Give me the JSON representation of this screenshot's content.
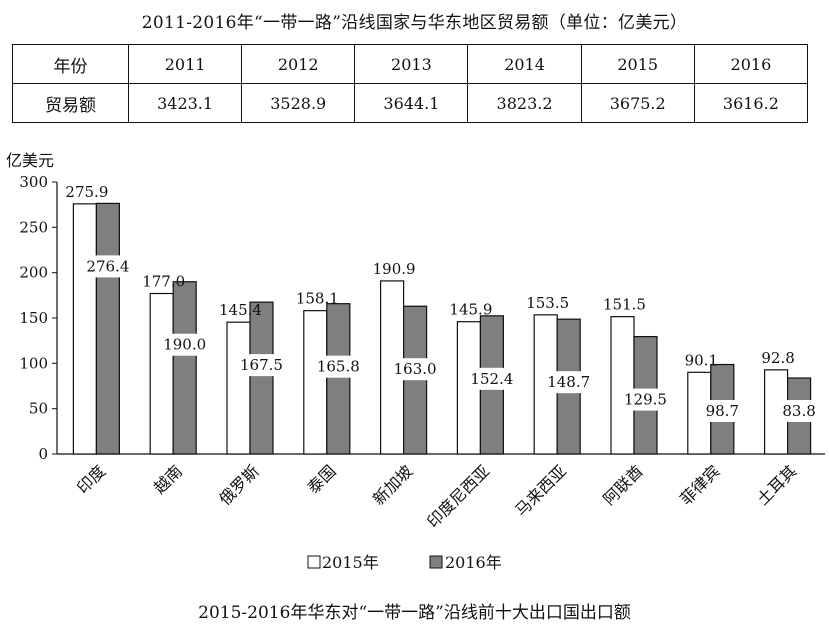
{
  "table": {
    "title": "2011-2016年“一带一路”沿线国家与华东地区贸易额（单位：亿美元）",
    "header_label": "年份",
    "row_label": "贸易额",
    "years": [
      "2011",
      "2012",
      "2013",
      "2014",
      "2015",
      "2016"
    ],
    "values": [
      "3423.1",
      "3528.9",
      "3644.1",
      "3823.2",
      "3675.2",
      "3616.2"
    ]
  },
  "chart_data": {
    "type": "bar",
    "title": "2015-2016年华东对“一带一路”沿线前十大出口国出口额",
    "ylabel": "亿美元",
    "ylim": [
      0,
      300
    ],
    "yticks": [
      0,
      50,
      100,
      150,
      200,
      250,
      300
    ],
    "grid": false,
    "legend_position": "bottom",
    "categories": [
      "印度",
      "越南",
      "俄罗斯",
      "泰国",
      "新加坡",
      "印度尼西亚",
      "马来西亚",
      "阿联酋",
      "菲律宾",
      "土耳其"
    ],
    "series": [
      {
        "name": "2015年",
        "color": "#ffffff",
        "values": [
          275.9,
          177.0,
          145.4,
          158.1,
          190.9,
          145.9,
          153.5,
          151.5,
          90.1,
          92.8
        ],
        "labels": [
          "275.9",
          "177.0",
          "145.4",
          "158.1",
          "190.9",
          "145.9",
          "153.5",
          "151.5",
          "90.1",
          "92.8"
        ]
      },
      {
        "name": "2016年",
        "color": "#7f7f7f",
        "values": [
          276.4,
          190.0,
          167.5,
          165.8,
          163.0,
          152.4,
          148.7,
          129.5,
          98.7,
          83.8
        ],
        "labels": [
          "276.4",
          "190.0",
          "167.5",
          "165.8",
          "163.0",
          "152.4",
          "148.7",
          "129.5",
          "98.7",
          "83.8"
        ]
      }
    ]
  }
}
